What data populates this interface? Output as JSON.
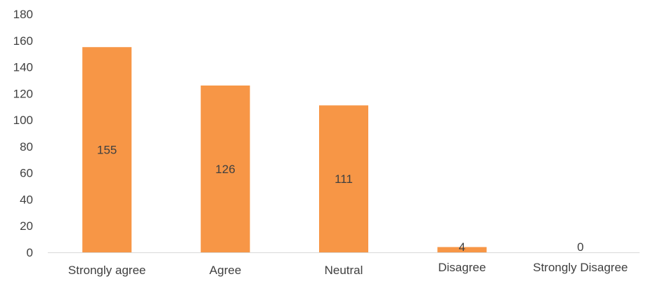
{
  "chart_data": {
    "type": "bar",
    "categories": [
      "Strongly agree",
      "Agree",
      "Neutral",
      "Disagree",
      "Strongly Disagree"
    ],
    "values": [
      155,
      126,
      111,
      4,
      0
    ],
    "data_labels": [
      "155",
      "126",
      "111",
      "4",
      "0"
    ],
    "ylim": [
      0,
      180
    ],
    "yticks": [
      0,
      20,
      40,
      60,
      80,
      100,
      120,
      140,
      160,
      180
    ],
    "ytick_labels": [
      "0",
      "20",
      "40",
      "60",
      "80",
      "100",
      "120",
      "140",
      "160",
      "180"
    ],
    "grid": false,
    "legend": "none",
    "bar_color": "#F79646",
    "axis_color": "#D9D9D9",
    "text_color": "#404040"
  }
}
